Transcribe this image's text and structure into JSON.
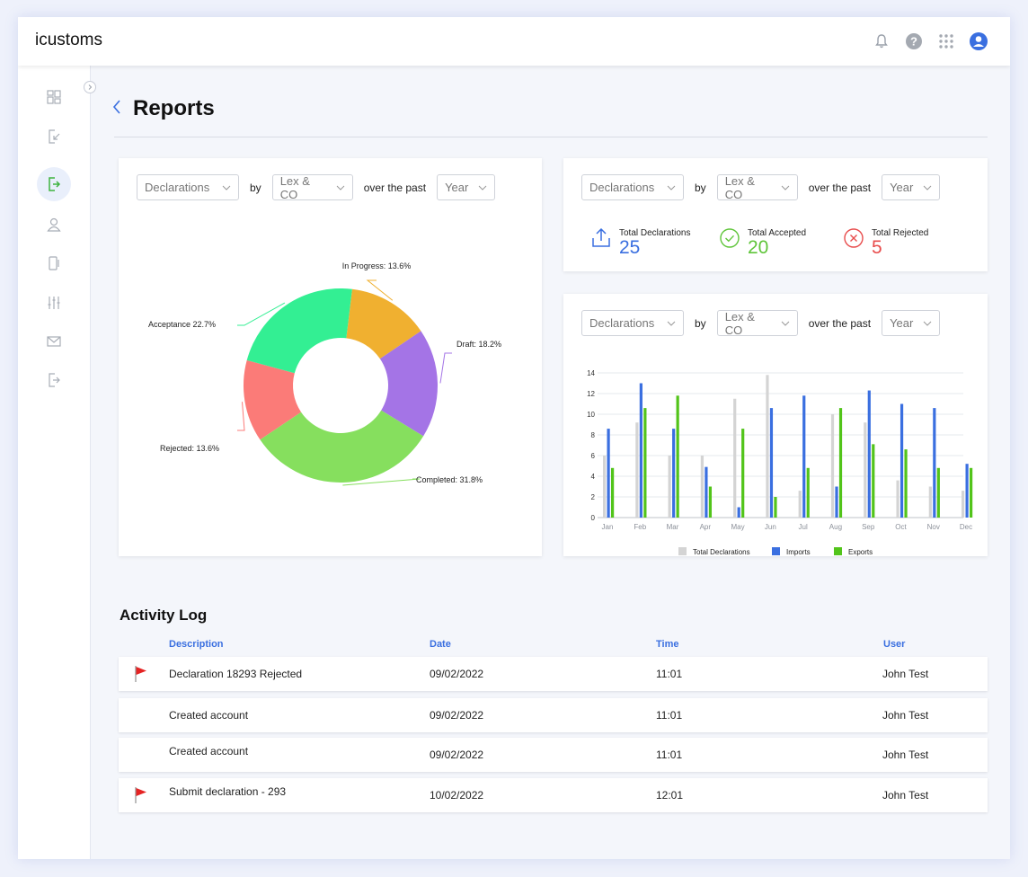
{
  "app": {
    "title": "icustoms"
  },
  "topbar": {
    "icons": [
      "bell-icon",
      "help-icon",
      "apps-grid-icon",
      "user-account-icon"
    ]
  },
  "sidebar": {
    "items": [
      "dashboard-icon",
      "import-icon",
      "export-icon",
      "user-icon",
      "document-icon",
      "filter-sliders-icon",
      "mail-icon",
      "logout-icon"
    ],
    "active_index": 2
  },
  "page": {
    "title": "Reports"
  },
  "filters": {
    "metric": "Declarations",
    "by": "by",
    "company": "Lex & CO",
    "over": "over the past",
    "period": "Year"
  },
  "stats": {
    "total_label": "Total Declarations",
    "total_value": "25",
    "accepted_label": "Total Accepted",
    "accepted_value": "20",
    "rejected_label": "Total Rejected",
    "rejected_value": "5",
    "colors": {
      "total": "#3a6fe0",
      "accepted": "#5fc53a",
      "rejected": "#e84c4c"
    }
  },
  "chart_data": [
    {
      "type": "pie",
      "title": "",
      "labels": [
        "In Progress",
        "Draft",
        "Completed",
        "Rejected",
        "Acceptance"
      ],
      "values": [
        13.6,
        18.2,
        31.8,
        13.6,
        22.7
      ],
      "display": [
        "In Progress: 13.6%",
        "Draft: 18.2%",
        "Completed: 31.8%",
        "Rejected: 13.6%",
        "Acceptance 22.7%"
      ],
      "colors": [
        "#f0b030",
        "#a474e6",
        "#86df5e",
        "#fb7b78",
        "#33ef93"
      ]
    },
    {
      "type": "bar",
      "title": "",
      "categories": [
        "Jan",
        "Feb",
        "Mar",
        "Apr",
        "May",
        "Jun",
        "Jul",
        "Aug",
        "Sep",
        "Oct",
        "Nov",
        "Dec"
      ],
      "series": [
        {
          "name": "Total Declarations",
          "color": "#d4d4d4",
          "values": [
            6,
            9.2,
            6,
            6,
            11.5,
            13.8,
            2.6,
            10,
            9.2,
            3.6,
            3,
            2.6
          ]
        },
        {
          "name": "Imports",
          "color": "#3a6fe0",
          "values": [
            8.6,
            13,
            8.6,
            4.9,
            1,
            10.6,
            11.8,
            3,
            12.3,
            11,
            10.6,
            5.2
          ]
        },
        {
          "name": "Exports",
          "color": "#52c41a",
          "values": [
            4.8,
            10.6,
            11.8,
            3,
            8.6,
            2,
            4.8,
            10.6,
            7.1,
            6.6,
            4.8,
            4.8
          ]
        }
      ],
      "ylim": [
        0,
        14
      ],
      "yticks": [
        "0",
        "2",
        "4",
        "6",
        "8",
        "10",
        "12",
        "14"
      ],
      "xlabel": "",
      "ylabel": "",
      "grid": true,
      "legend": "bottom"
    }
  ],
  "activity": {
    "title": "Activity Log",
    "headers": {
      "description": "Description",
      "date": "Date",
      "time": "Time",
      "user": "User"
    },
    "rows": [
      {
        "flag": true,
        "description": "Declaration 18293 Rejected",
        "date": "09/02/2022",
        "time": "11:01",
        "user": "John Test"
      },
      {
        "flag": false,
        "description": "Created account",
        "date": "09/02/2022",
        "time": "11:01",
        "user": "John Test"
      },
      {
        "flag": false,
        "description": "Created account",
        "date": "09/02/2022",
        "time": "11:01",
        "user": "John Test"
      },
      {
        "flag": true,
        "description": "Submit declaration - 293",
        "date": "10/02/2022",
        "time": "12:01",
        "user": "John Test"
      }
    ]
  }
}
